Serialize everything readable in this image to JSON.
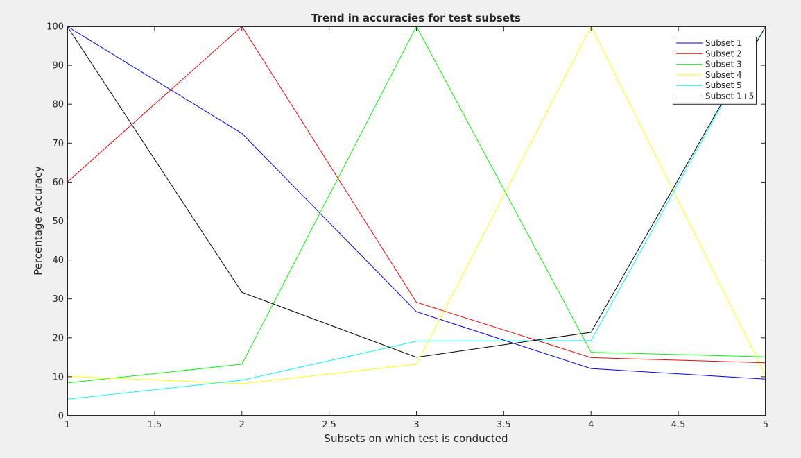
{
  "chart_data": {
    "type": "line",
    "title": "Trend in accuracies for test subsets",
    "xlabel": "Subsets on which test is conducted",
    "ylabel": "Percentage Accuracy",
    "xlim": [
      1,
      5
    ],
    "ylim": [
      0,
      100
    ],
    "x_ticks": [
      "1",
      "1.5",
      "2",
      "2.5",
      "3",
      "3.5",
      "4",
      "4.5",
      "5"
    ],
    "y_ticks": [
      "0",
      "10",
      "20",
      "30",
      "40",
      "50",
      "60",
      "70",
      "80",
      "90",
      "100"
    ],
    "grid": false,
    "legend_position": "top-right",
    "x": [
      1,
      2,
      3,
      4,
      5
    ],
    "series": [
      {
        "name": "Subset 1",
        "color": "#0000ff",
        "values": [
          100,
          72.5,
          26.7,
          12.1,
          9.4
        ]
      },
      {
        "name": "Subset 2",
        "color": "#ff0000",
        "values": [
          60,
          100,
          29.1,
          14.9,
          13.6
        ]
      },
      {
        "name": "Subset 3",
        "color": "#00ff00",
        "values": [
          8.4,
          13.2,
          100,
          16.3,
          15.1
        ]
      },
      {
        "name": "Subset 4",
        "color": "#ffff00",
        "values": [
          10.1,
          8.2,
          13.2,
          100,
          10.3
        ]
      },
      {
        "name": "Subset 5",
        "color": "#00ffff",
        "values": [
          4.2,
          9.1,
          19.1,
          19.3,
          100
        ]
      },
      {
        "name": "Subset 1+5",
        "color": "#000000",
        "values": [
          100,
          31.7,
          15,
          21.4,
          100
        ]
      }
    ]
  }
}
